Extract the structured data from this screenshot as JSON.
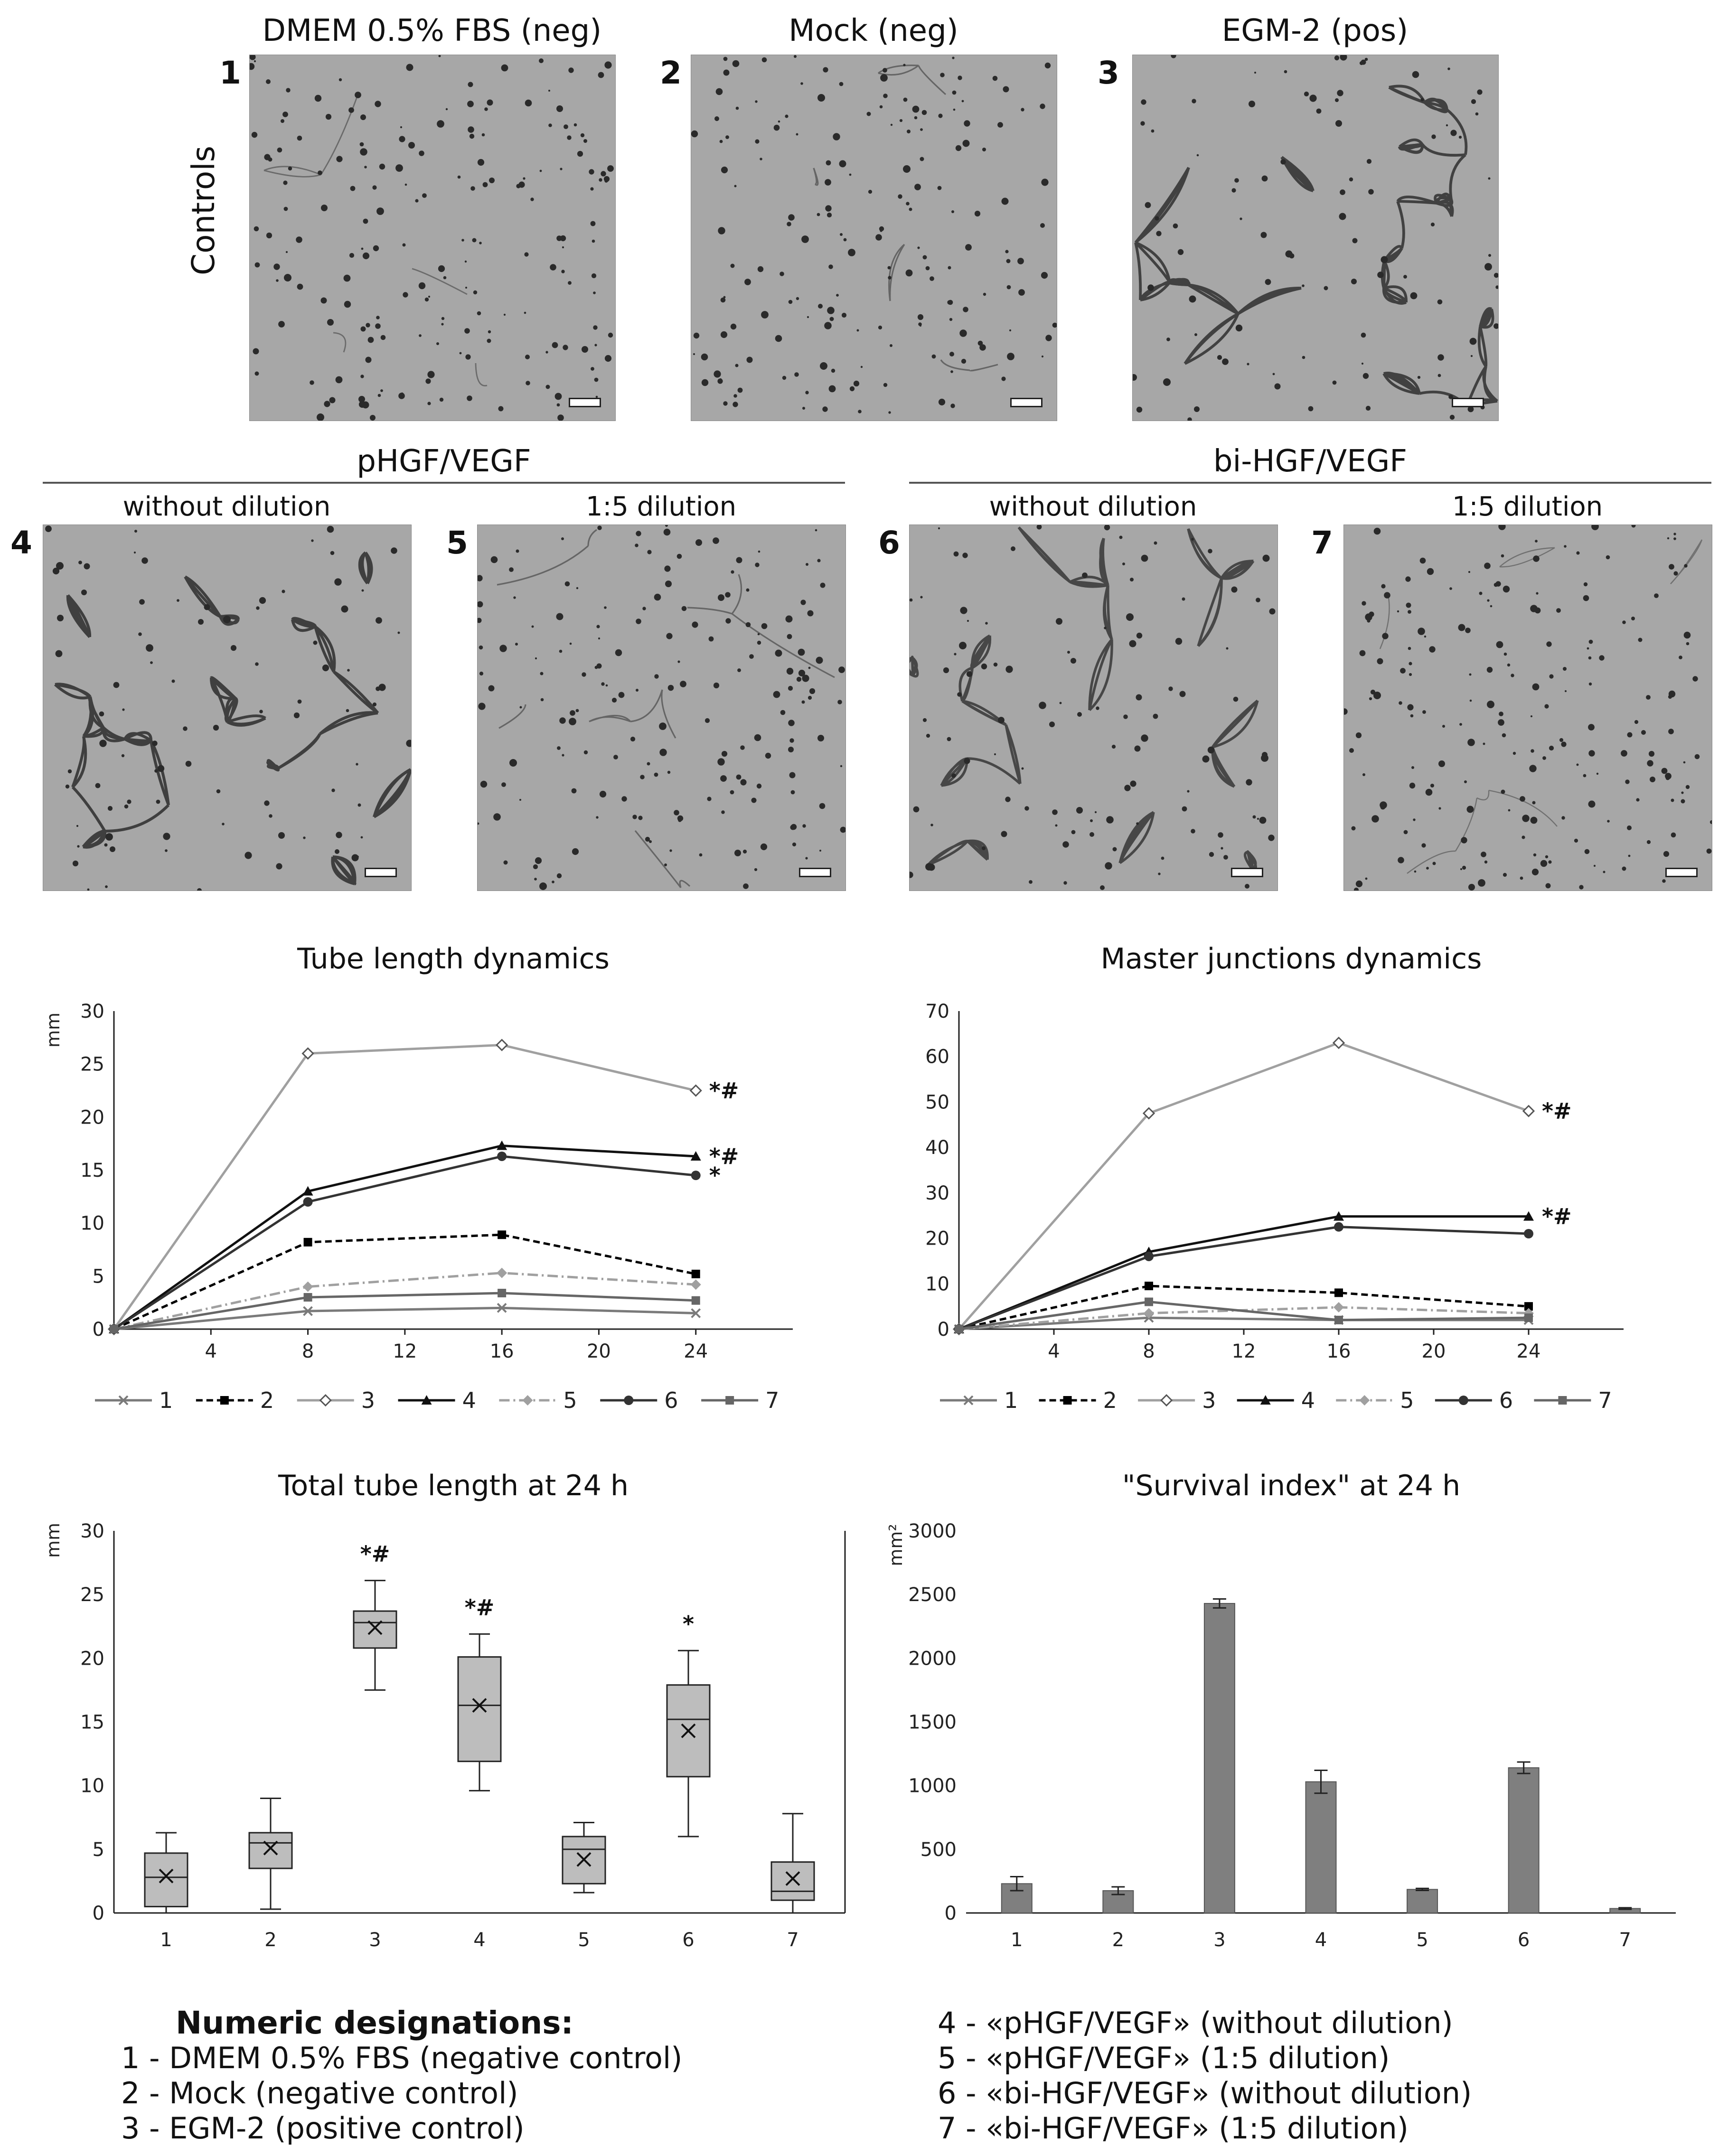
{
  "panels": {
    "row1": [
      {
        "num": "1",
        "title": "DMEM 0.5% FBS (neg)"
      },
      {
        "num": "2",
        "title": "Mock (neg)"
      },
      {
        "num": "3",
        "title": "EGM-2 (pos)"
      }
    ],
    "row_label": "Controls",
    "group_a": {
      "title": "pHGF/VEGF",
      "sub1": "without dilution",
      "sub2": "1:5 dilution",
      "num1": "4",
      "num2": "5"
    },
    "group_b": {
      "title": "bi-HGF/VEGF",
      "sub1": "without dilution",
      "sub2": "1:5 dilution",
      "num1": "6",
      "num2": "7"
    }
  },
  "chart_data": [
    {
      "type": "line",
      "title": "Tube length dynamics",
      "ylabel": "mm",
      "x": [
        0,
        8,
        16,
        24
      ],
      "xticks": [
        "4",
        "8",
        "12",
        "16",
        "20",
        "24"
      ],
      "yticks": [
        "0",
        "5",
        "10",
        "15",
        "20",
        "25",
        "30"
      ],
      "ylim": [
        0,
        30
      ],
      "xlim": [
        0,
        28
      ],
      "series": [
        {
          "name": "1",
          "values": [
            0,
            1.7,
            2.0,
            1.5
          ],
          "color": "#7a7a7a",
          "dash": "",
          "marker": "x"
        },
        {
          "name": "2",
          "values": [
            0,
            8.2,
            8.9,
            5.2
          ],
          "color": "#000000",
          "dash": "14,8",
          "marker": "square"
        },
        {
          "name": "3",
          "values": [
            0,
            26.0,
            26.8,
            22.5
          ],
          "color": "#a0a0a0",
          "dash": "",
          "marker": "diamond-open"
        },
        {
          "name": "4",
          "values": [
            0,
            13.0,
            17.3,
            16.3
          ],
          "color": "#111111",
          "dash": "",
          "marker": "triangle"
        },
        {
          "name": "5",
          "values": [
            0,
            4.0,
            5.3,
            4.2
          ],
          "color": "#a0a0a0",
          "dash": "22,8,4,8",
          "marker": "diamond"
        },
        {
          "name": "6",
          "values": [
            0,
            12.0,
            16.3,
            14.5
          ],
          "color": "#333333",
          "dash": "",
          "marker": "circle"
        },
        {
          "name": "7",
          "values": [
            0,
            3.0,
            3.4,
            2.7
          ],
          "color": "#666666",
          "dash": "",
          "marker": "square"
        }
      ],
      "annotations": [
        {
          "series": "3",
          "text": "*#"
        },
        {
          "series": "4",
          "text": "*#"
        },
        {
          "series": "6",
          "text": "*"
        }
      ]
    },
    {
      "type": "line",
      "title": "Master junctions dynamics",
      "ylabel": "",
      "x": [
        0,
        8,
        16,
        24
      ],
      "xticks": [
        "4",
        "8",
        "12",
        "16",
        "20",
        "24"
      ],
      "yticks": [
        "0",
        "10",
        "20",
        "30",
        "40",
        "50",
        "60",
        "70"
      ],
      "ylim": [
        0,
        70
      ],
      "xlim": [
        0,
        28
      ],
      "series": [
        {
          "name": "1",
          "values": [
            0,
            2.5,
            2.0,
            2.0
          ],
          "color": "#7a7a7a",
          "dash": "",
          "marker": "x"
        },
        {
          "name": "2",
          "values": [
            0,
            9.5,
            8.0,
            5.0
          ],
          "color": "#000000",
          "dash": "14,8",
          "marker": "square"
        },
        {
          "name": "3",
          "values": [
            0,
            47.5,
            63.0,
            48.0
          ],
          "color": "#a0a0a0",
          "dash": "",
          "marker": "diamond-open"
        },
        {
          "name": "4",
          "values": [
            0,
            17.0,
            24.8,
            24.8
          ],
          "color": "#111111",
          "dash": "",
          "marker": "triangle"
        },
        {
          "name": "5",
          "values": [
            0,
            3.5,
            4.8,
            3.5
          ],
          "color": "#a0a0a0",
          "dash": "22,8,4,8",
          "marker": "diamond"
        },
        {
          "name": "6",
          "values": [
            0,
            16.0,
            22.5,
            21.0
          ],
          "color": "#333333",
          "dash": "",
          "marker": "circle"
        },
        {
          "name": "7",
          "values": [
            0,
            6.0,
            2.0,
            2.5
          ],
          "color": "#666666",
          "dash": "",
          "marker": "square"
        }
      ],
      "annotations": [
        {
          "series": "3",
          "text": "*#"
        },
        {
          "series": "4",
          "text": "*#"
        }
      ]
    },
    {
      "type": "box",
      "title": "Total tube length at 24 h",
      "ylabel": "mm",
      "categories": [
        "1",
        "2",
        "3",
        "4",
        "5",
        "6",
        "7"
      ],
      "yticks": [
        "0",
        "5",
        "10",
        "15",
        "20",
        "25",
        "30"
      ],
      "ylim": [
        0,
        30
      ],
      "boxes": [
        {
          "min": 0.0,
          "q1": 0.5,
          "median": 2.8,
          "q3": 4.7,
          "max": 6.3,
          "mean": 2.9,
          "sig": ""
        },
        {
          "min": 0.3,
          "q1": 3.5,
          "median": 5.5,
          "q3": 6.3,
          "max": 9.0,
          "mean": 5.1,
          "sig": ""
        },
        {
          "min": 17.5,
          "q1": 20.8,
          "median": 22.8,
          "q3": 23.7,
          "max": 26.1,
          "mean": 22.4,
          "sig": "*#"
        },
        {
          "min": 9.6,
          "q1": 11.9,
          "median": 16.3,
          "q3": 20.1,
          "max": 21.9,
          "mean": 16.3,
          "sig": "*#"
        },
        {
          "min": 1.6,
          "q1": 2.3,
          "median": 5.0,
          "q3": 6.0,
          "max": 7.1,
          "mean": 4.2,
          "sig": ""
        },
        {
          "min": 6.0,
          "q1": 10.7,
          "median": 15.2,
          "q3": 17.9,
          "max": 20.6,
          "mean": 14.3,
          "sig": "*"
        },
        {
          "min": 0.0,
          "q1": 1.0,
          "median": 1.7,
          "q3": 4.0,
          "max": 7.8,
          "mean": 2.7,
          "sig": ""
        }
      ]
    },
    {
      "type": "bar",
      "title": "\"Survival index\" at 24 h",
      "ylabel": "mm²",
      "categories": [
        "1",
        "2",
        "3",
        "4",
        "5",
        "6",
        "7"
      ],
      "values": [
        230,
        175,
        2430,
        1030,
        185,
        1140,
        35
      ],
      "errors": [
        55,
        30,
        35,
        90,
        8,
        45,
        6
      ],
      "yticks": [
        "0",
        "500",
        "1000",
        "1500",
        "2000",
        "2500",
        "3000"
      ],
      "ylim": [
        0,
        3000
      ],
      "color": "#7f7f7f"
    }
  ],
  "designations": {
    "header": "Numeric designations:",
    "left": [
      "1 - DMEM 0.5% FBS (negative control)",
      "2 - Mock (negative control)",
      "3 - EGM-2 (positive control)"
    ],
    "right": [
      "4 - «pHGF/VEGF» (without dilution)",
      "5 - «pHGF/VEGF» (1:5 dilution)",
      "6 - «bi-HGF/VEGF» (without dilution)",
      "7 - «bi-HGF/VEGF» (1:5 dilution)"
    ]
  }
}
